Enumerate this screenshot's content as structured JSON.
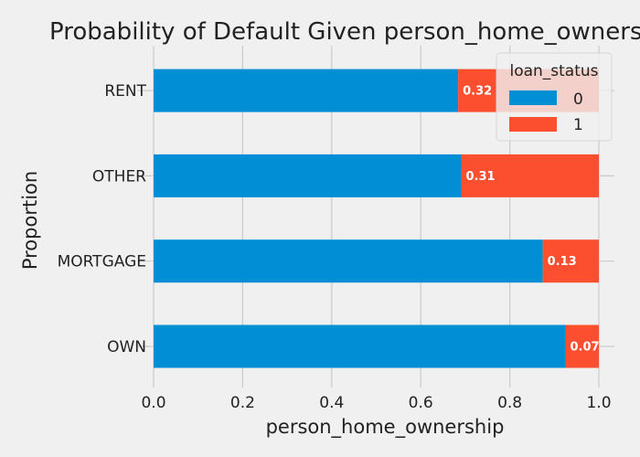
{
  "chart_data": {
    "type": "bar",
    "orientation": "horizontal",
    "stacked": true,
    "title": "Probability of Default Given person_home_ownership",
    "xlabel": "person_home_ownership",
    "ylabel": "Proportion",
    "xlim": [
      0,
      1.0
    ],
    "x_ticks": [
      "0.0",
      "0.2",
      "0.4",
      "0.6",
      "0.8",
      "1.0"
    ],
    "grid": true,
    "categories": [
      "OWN",
      "MORTGAGE",
      "OTHER",
      "RENT"
    ],
    "series": [
      {
        "name": "0",
        "color": "#008fd5",
        "values": [
          0.925,
          0.874,
          0.691,
          0.684
        ]
      },
      {
        "name": "1",
        "color": "#fc4f30",
        "values": [
          0.075,
          0.126,
          0.309,
          0.316
        ]
      }
    ],
    "data_labels": [
      "0.07",
      "0.13",
      "0.31",
      "0.32"
    ],
    "legend": {
      "title": "loan_status",
      "entries": [
        "0",
        "1"
      ],
      "placement": "top-right"
    }
  }
}
